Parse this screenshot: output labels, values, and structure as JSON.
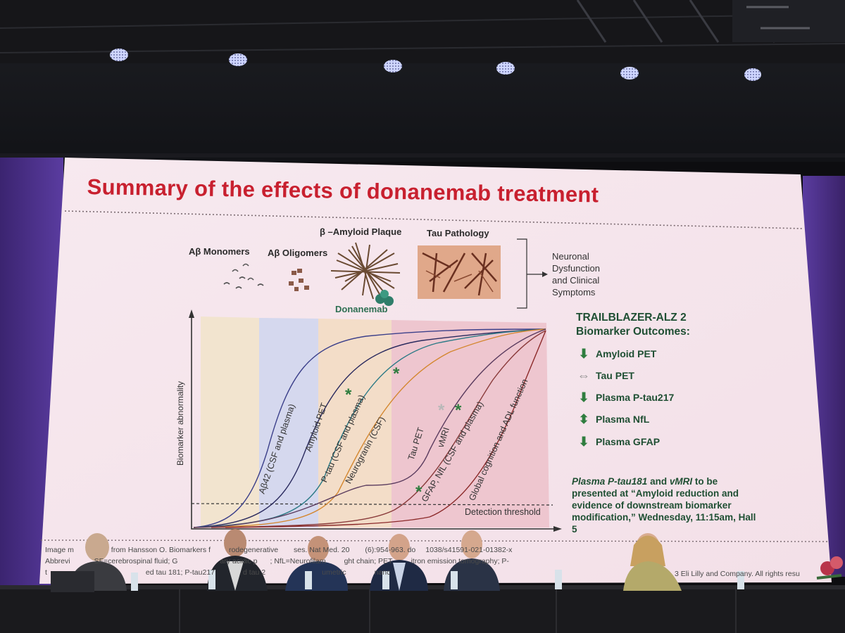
{
  "slide": {
    "title": "Summary of the effects of donanemab treatment",
    "pathway": {
      "monomers": "Aβ Monomers",
      "oligomers": "Aβ Oligomers",
      "plaque": "β –Amyloid Plaque",
      "tau": "Tau Pathology",
      "drug": "Donanemab",
      "outcome_lines": [
        "Neuronal",
        "Dysfunction",
        "and Clinical",
        "Symptoms"
      ]
    },
    "chart": {
      "ylabel": "Biomarker abnormality",
      "threshold": "Detection threshold",
      "curves": [
        "Aβ42 (CSF and plasma)",
        "Amyloid PET",
        "P-tau (CSF and plasma)",
        "Neurogranin (CSF)",
        "Tau PET",
        "vMRI",
        "GFAP, NfL (CSF and plasma)",
        "Global cognition and ADL function"
      ],
      "star": "*"
    },
    "outcomes": {
      "title_line1": "TRAILBLAZER-ALZ 2",
      "title_line2": "Biomarker Outcomes:",
      "items": [
        {
          "label": "Amyloid PET",
          "icon": "down-arrow-icon"
        },
        {
          "label": "Tau PET",
          "icon": "left-right-arrow-icon"
        },
        {
          "label": "Plasma P-tau217",
          "icon": "down-arrow-icon"
        },
        {
          "label": "Plasma NfL",
          "icon": "up-down-arrow-icon"
        },
        {
          "label": "Plasma GFAP",
          "icon": "down-arrow-icon"
        }
      ]
    },
    "note": {
      "emph": "Plasma P-tau181",
      "and": " and ",
      "emph2": "vMRI",
      "rest": " to be presented at “Amyloid reduction and evidence of downstream biomarker modification,” Wednesday, 11:15am, Hall 5"
    },
    "footnotes": {
      "line1_a": "Image m",
      "line1_b": " from Hansson O. Biomarkers f",
      "line1_c": "rodegenerative",
      "line1_d": "ses. Nat Med. 20",
      "line1_e": "(6):954-963. do",
      "line1_f": "1038/s41591-021-01382-x",
      "line2_a": "Abbrevi",
      "line2_b": "SF=cerebrospinal fluid; G",
      "line2_c": "ary acidic p",
      "line2_d": "; NfL=Neurofilam",
      "line2_e": "ght chain; PET",
      "line2_f": "itron emission tomography; P-",
      "line3_a": "t",
      "line3_b": "ed tau 181; P-tau217",
      "line3_c": "d tau 2",
      "line3_d": "umetric",
      "line3_e": "nanc",
      "copyright": "3 Eli Lilly and Company. All rights resu"
    }
  }
}
